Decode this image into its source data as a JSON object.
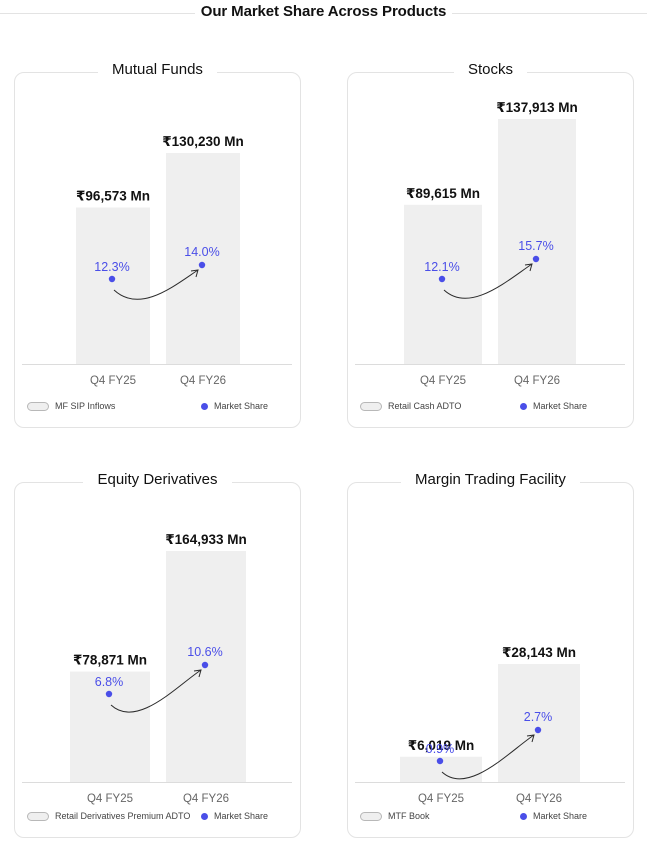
{
  "page": {
    "title": "Our Market Share Across Products"
  },
  "colors": {
    "bar": "#efefef",
    "share": "#4a4ee8",
    "axis": "#dcdcdc",
    "text": "#111111",
    "tick": "#666666"
  },
  "chart_data": [
    {
      "title": "Mutual Funds",
      "type": "bar",
      "categories": [
        "Q4 FY25",
        "Q4 FY26"
      ],
      "values": [
        96573,
        130230
      ],
      "value_labels": [
        "₹96,573 Mn",
        "₹130,230 Mn"
      ],
      "share": [
        12.3,
        14.0
      ],
      "share_labels": [
        "12.3%",
        "14.0%"
      ],
      "legend": {
        "bar": "MF SIP Inflows",
        "share": "Market Share"
      }
    },
    {
      "title": "Stocks",
      "type": "bar",
      "categories": [
        "Q4 FY25",
        "Q4 FY26"
      ],
      "values": [
        89615,
        137913
      ],
      "value_labels": [
        "₹89,615 Mn",
        "₹137,913 Mn"
      ],
      "share": [
        12.1,
        15.7
      ],
      "share_labels": [
        "12.1%",
        "15.7%"
      ],
      "legend": {
        "bar": "Retail Cash ADTO",
        "share": "Market Share"
      }
    },
    {
      "title": "Equity Derivatives",
      "type": "bar",
      "categories": [
        "Q4 FY25",
        "Q4 FY26"
      ],
      "values": [
        78871,
        164933
      ],
      "value_labels": [
        "₹78,871 Mn",
        "₹164,933 Mn"
      ],
      "share": [
        6.8,
        10.6
      ],
      "share_labels": [
        "6.8%",
        "10.6%"
      ],
      "legend": {
        "bar": "Retail Derivatives Premium ADTO",
        "share": "Market Share"
      }
    },
    {
      "title": "Margin Trading Facility",
      "type": "bar",
      "categories": [
        "Q4 FY25",
        "Q4 FY26"
      ],
      "values": [
        6019,
        28143
      ],
      "value_labels": [
        "₹6,019 Mn",
        "₹28,143 Mn"
      ],
      "share": [
        0.9,
        2.7
      ],
      "share_labels": [
        "0.9%",
        "2.7%"
      ],
      "legend": {
        "bar": "MTF Book",
        "share": "Market Share"
      }
    }
  ]
}
